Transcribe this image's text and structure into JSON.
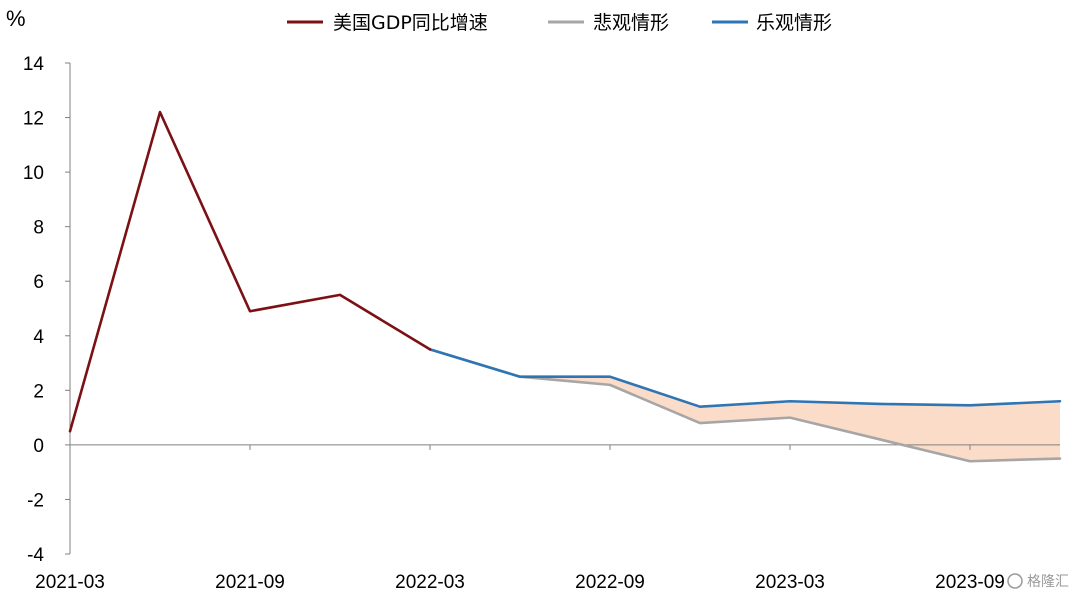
{
  "chart_data": {
    "type": "line",
    "unit": "%",
    "x": [
      "2021-03",
      "2021-06",
      "2021-09",
      "2021-12",
      "2022-03",
      "2022-06",
      "2022-09",
      "2022-12",
      "2023-03",
      "2023-06",
      "2023-09",
      "2023-12"
    ],
    "x_tick_labels": [
      "2021-03",
      "2021-09",
      "2022-03",
      "2022-09",
      "2023-03",
      "2023-09"
    ],
    "ylim": [
      -4,
      14
    ],
    "yticks": [
      14,
      12,
      10,
      8,
      6,
      4,
      2,
      0,
      -2,
      -4
    ],
    "grid": false,
    "legend_position": "top",
    "series": [
      {
        "name": "美国GDP同比增速",
        "color": "#7b1114",
        "values": [
          0.5,
          12.2,
          4.9,
          5.5,
          3.5,
          null,
          null,
          null,
          null,
          null,
          null,
          null
        ]
      },
      {
        "name": "悲观情形",
        "color": "#a6a6a6",
        "values": [
          null,
          null,
          null,
          null,
          3.5,
          2.5,
          2.2,
          0.8,
          1.0,
          0.2,
          -0.6,
          -0.5
        ]
      },
      {
        "name": "乐观情形",
        "color": "#2e75b6",
        "values": [
          null,
          null,
          null,
          null,
          3.5,
          2.5,
          2.5,
          1.4,
          1.6,
          1.5,
          1.45,
          1.6
        ]
      }
    ],
    "band_fill": "#fbdcc8"
  },
  "watermark": "格隆汇"
}
